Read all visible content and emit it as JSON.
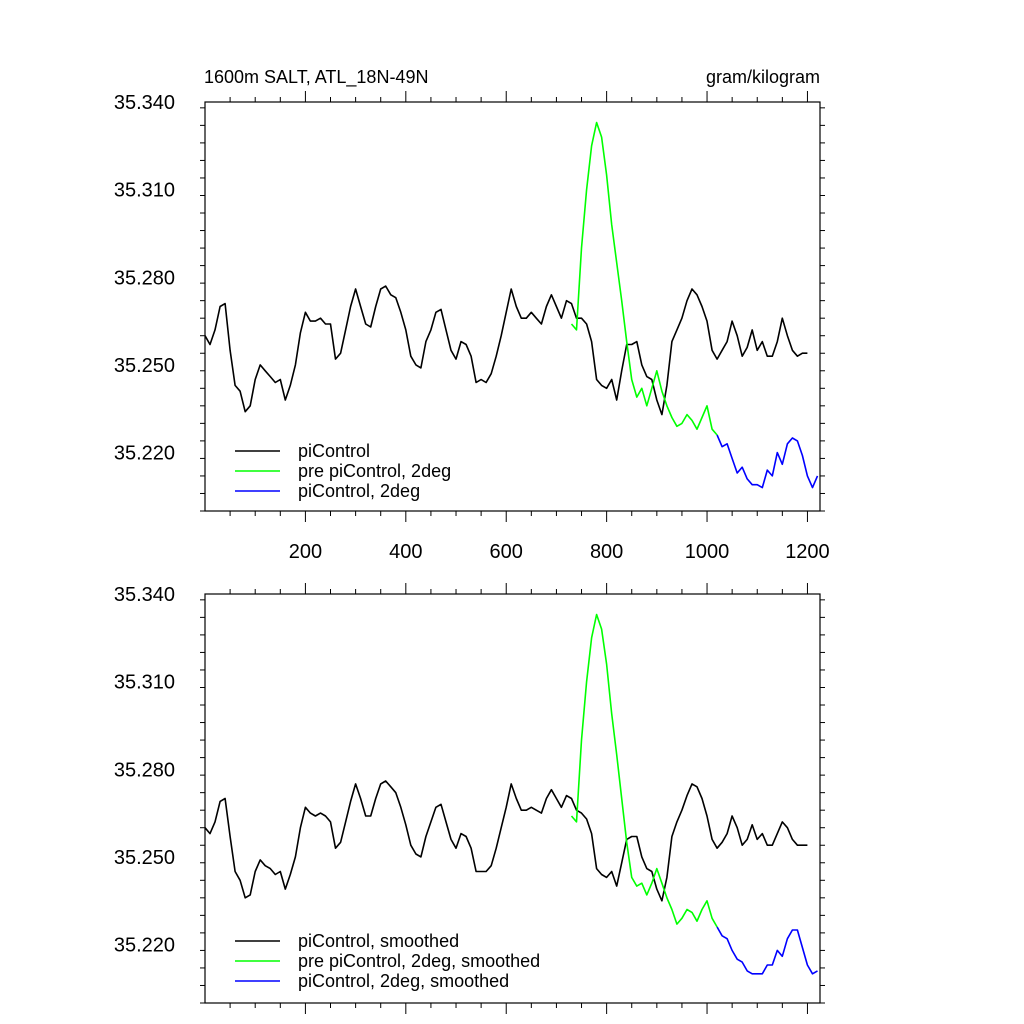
{
  "header": {
    "title": "1600m SALT, ATL_18N-49N",
    "units": "gram/kilogram"
  },
  "chart_data": [
    {
      "type": "line",
      "title": "1600m SALT, ATL_18N-49N",
      "units": "gram/kilogram",
      "xlabel": "",
      "ylabel": "",
      "xlim": [
        0,
        1225
      ],
      "ylim": [
        35.2,
        35.34
      ],
      "xticks": [
        200,
        400,
        600,
        800,
        1000,
        1200
      ],
      "yticks": [
        35.22,
        35.25,
        35.28,
        35.31,
        35.34
      ],
      "ytick_labels": [
        "35.220",
        "35.250",
        "35.280",
        "35.310",
        "35.340"
      ],
      "show_xtick_labels": true,
      "legend_position": "bottom-left",
      "series": [
        {
          "name": "piControl",
          "color": "#000000",
          "x": [
            0,
            10,
            20,
            30,
            40,
            50,
            60,
            70,
            80,
            90,
            100,
            110,
            120,
            130,
            140,
            150,
            160,
            170,
            180,
            190,
            200,
            210,
            220,
            230,
            240,
            250,
            260,
            270,
            280,
            290,
            300,
            310,
            320,
            330,
            340,
            350,
            360,
            370,
            380,
            390,
            400,
            410,
            420,
            430,
            440,
            450,
            460,
            470,
            480,
            490,
            500,
            510,
            520,
            530,
            540,
            550,
            560,
            570,
            580,
            590,
            600,
            610,
            620,
            630,
            640,
            650,
            660,
            670,
            680,
            690,
            700,
            710,
            720,
            730,
            740,
            750,
            760,
            770,
            780,
            790,
            800,
            810,
            820,
            830,
            840,
            850,
            860,
            870,
            880,
            890,
            900,
            910,
            920,
            930,
            940,
            950,
            960,
            970,
            980,
            990,
            1000,
            1010,
            1020,
            1030,
            1040,
            1050,
            1060,
            1070,
            1080,
            1090,
            1100,
            1110,
            1120,
            1130,
            1140,
            1150,
            1160,
            1170,
            1180,
            1190,
            1200
          ],
          "values": [
            35.26,
            35.257,
            35.262,
            35.27,
            35.271,
            35.255,
            35.243,
            35.241,
            35.234,
            35.236,
            35.245,
            35.25,
            35.248,
            35.246,
            35.244,
            35.245,
            35.238,
            35.243,
            35.25,
            35.261,
            35.268,
            35.265,
            35.265,
            35.266,
            35.264,
            35.264,
            35.252,
            35.254,
            35.262,
            35.27,
            35.276,
            35.27,
            35.264,
            35.263,
            35.27,
            35.276,
            35.277,
            35.274,
            35.273,
            35.268,
            35.262,
            35.253,
            35.25,
            35.249,
            35.258,
            35.262,
            35.268,
            35.269,
            35.262,
            35.255,
            35.252,
            35.258,
            35.257,
            35.253,
            35.244,
            35.245,
            35.244,
            35.247,
            35.253,
            35.26,
            35.268,
            35.276,
            35.27,
            35.266,
            35.266,
            35.268,
            35.266,
            35.264,
            35.27,
            35.274,
            35.27,
            35.266,
            35.272,
            35.271,
            35.266,
            35.266,
            35.264,
            35.258,
            35.245,
            35.243,
            35.242,
            35.245,
            35.238,
            35.248,
            35.257,
            35.257,
            35.258,
            35.25,
            35.246,
            35.245,
            35.238,
            35.233,
            35.243,
            35.258,
            35.262,
            35.266,
            35.272,
            35.276,
            35.274,
            35.27,
            35.265,
            35.255,
            35.252,
            35.255,
            35.258,
            35.265,
            35.26,
            35.253,
            35.256,
            35.262,
            35.255,
            35.258,
            35.253,
            35.253,
            35.258,
            35.266,
            35.26,
            35.255,
            35.253,
            35.254,
            35.254
          ]
        },
        {
          "name": "pre piControl, 2deg",
          "color": "#00ff00",
          "x": [
            730,
            740,
            750,
            760,
            770,
            780,
            790,
            800,
            810,
            820,
            830,
            840,
            850,
            860,
            870,
            880,
            890,
            900,
            910,
            920,
            930,
            940,
            950,
            960,
            970,
            980,
            990,
            1000,
            1010,
            1020
          ],
          "values": [
            35.264,
            35.262,
            35.29,
            35.31,
            35.325,
            35.333,
            35.328,
            35.315,
            35.298,
            35.285,
            35.272,
            35.258,
            35.245,
            35.239,
            35.242,
            35.236,
            35.242,
            35.248,
            35.241,
            35.236,
            35.232,
            35.229,
            35.23,
            35.233,
            35.231,
            35.228,
            35.232,
            35.236,
            35.228,
            35.226
          ]
        },
        {
          "name": "piControl, 2deg",
          "color": "#0000ff",
          "x": [
            1020,
            1030,
            1040,
            1050,
            1060,
            1070,
            1080,
            1090,
            1100,
            1110,
            1120,
            1130,
            1140,
            1150,
            1160,
            1170,
            1180,
            1190,
            1200,
            1210,
            1220
          ],
          "values": [
            35.226,
            35.222,
            35.223,
            35.218,
            35.213,
            35.215,
            35.211,
            35.209,
            35.209,
            35.208,
            35.214,
            35.212,
            35.22,
            35.216,
            35.223,
            35.225,
            35.224,
            35.219,
            35.212,
            35.208,
            35.212
          ]
        }
      ]
    },
    {
      "type": "line",
      "title": "",
      "xlabel": "",
      "ylabel": "",
      "xlim": [
        0,
        1225
      ],
      "ylim": [
        35.2,
        35.34
      ],
      "xticks": [
        200,
        400,
        600,
        800,
        1000,
        1200
      ],
      "yticks": [
        35.22,
        35.25,
        35.28,
        35.31,
        35.34
      ],
      "ytick_labels": [
        "35.220",
        "35.250",
        "35.280",
        "35.310",
        "35.340"
      ],
      "show_xtick_labels": false,
      "legend_position": "bottom-left",
      "series": [
        {
          "name": "piControl, smoothed",
          "color": "#000000",
          "x": [
            0,
            10,
            20,
            30,
            40,
            50,
            60,
            70,
            80,
            90,
            100,
            110,
            120,
            130,
            140,
            150,
            160,
            170,
            180,
            190,
            200,
            210,
            220,
            230,
            240,
            250,
            260,
            270,
            280,
            290,
            300,
            310,
            320,
            330,
            340,
            350,
            360,
            370,
            380,
            390,
            400,
            410,
            420,
            430,
            440,
            450,
            460,
            470,
            480,
            490,
            500,
            510,
            520,
            530,
            540,
            550,
            560,
            570,
            580,
            590,
            600,
            610,
            620,
            630,
            640,
            650,
            660,
            670,
            680,
            690,
            700,
            710,
            720,
            730,
            740,
            750,
            760,
            770,
            780,
            790,
            800,
            810,
            820,
            830,
            840,
            850,
            860,
            870,
            880,
            890,
            900,
            910,
            920,
            930,
            940,
            950,
            960,
            970,
            980,
            990,
            1000,
            1010,
            1020,
            1030,
            1040,
            1050,
            1060,
            1070,
            1080,
            1090,
            1100,
            1110,
            1120,
            1130,
            1140,
            1150,
            1160,
            1170,
            1180,
            1190,
            1200
          ],
          "values": [
            35.26,
            35.258,
            35.262,
            35.269,
            35.27,
            35.257,
            35.245,
            35.242,
            35.236,
            35.237,
            35.245,
            35.249,
            35.247,
            35.246,
            35.244,
            35.245,
            35.239,
            35.244,
            35.25,
            35.26,
            35.267,
            35.265,
            35.264,
            35.265,
            35.264,
            35.262,
            35.253,
            35.255,
            35.262,
            35.269,
            35.275,
            35.27,
            35.264,
            35.264,
            35.27,
            35.275,
            35.276,
            35.274,
            35.272,
            35.267,
            35.261,
            35.254,
            35.251,
            35.25,
            35.257,
            35.262,
            35.267,
            35.268,
            35.262,
            35.256,
            35.253,
            35.258,
            35.257,
            35.253,
            35.245,
            35.245,
            35.245,
            35.247,
            35.253,
            35.26,
            35.267,
            35.275,
            35.27,
            35.266,
            35.266,
            35.267,
            35.266,
            35.265,
            35.27,
            35.273,
            35.27,
            35.267,
            35.271,
            35.27,
            35.266,
            35.265,
            35.263,
            35.258,
            35.246,
            35.244,
            35.243,
            35.245,
            35.24,
            35.248,
            35.256,
            35.257,
            35.257,
            35.25,
            35.246,
            35.245,
            35.239,
            35.235,
            35.243,
            35.257,
            35.262,
            35.266,
            35.271,
            35.275,
            35.274,
            35.27,
            35.264,
            35.256,
            35.253,
            35.255,
            35.258,
            35.264,
            35.26,
            35.254,
            35.256,
            35.261,
            35.256,
            35.258,
            35.254,
            35.254,
            35.258,
            35.262,
            35.26,
            35.256,
            35.254,
            35.254,
            35.254
          ]
        },
        {
          "name": "pre piControl, 2deg, smoothed",
          "color": "#00ff00",
          "x": [
            730,
            740,
            750,
            760,
            770,
            780,
            790,
            800,
            810,
            820,
            830,
            840,
            850,
            860,
            870,
            880,
            890,
            900,
            910,
            920,
            930,
            940,
            950,
            960,
            970,
            980,
            990,
            1000,
            1010,
            1020
          ],
          "values": [
            35.264,
            35.262,
            35.29,
            35.31,
            35.325,
            35.333,
            35.328,
            35.316,
            35.299,
            35.285,
            35.27,
            35.255,
            35.243,
            35.24,
            35.241,
            35.237,
            35.241,
            35.246,
            35.241,
            35.236,
            35.232,
            35.227,
            35.229,
            35.232,
            35.231,
            35.228,
            35.232,
            35.235,
            35.229,
            35.226
          ]
        },
        {
          "name": "piControl, 2deg, smoothed",
          "color": "#0000ff",
          "x": [
            1020,
            1030,
            1040,
            1050,
            1060,
            1070,
            1080,
            1090,
            1100,
            1110,
            1120,
            1130,
            1140,
            1150,
            1160,
            1170,
            1180,
            1190,
            1200,
            1210,
            1220
          ],
          "values": [
            35.226,
            35.223,
            35.222,
            35.218,
            35.215,
            35.214,
            35.211,
            35.21,
            35.21,
            35.21,
            35.213,
            35.213,
            35.218,
            35.216,
            35.222,
            35.225,
            35.225,
            35.219,
            35.213,
            35.21,
            35.211
          ]
        }
      ]
    }
  ]
}
